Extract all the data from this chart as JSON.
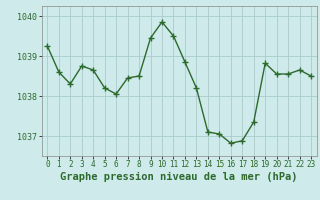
{
  "x": [
    0,
    1,
    2,
    3,
    4,
    5,
    6,
    7,
    8,
    9,
    10,
    11,
    12,
    13,
    14,
    15,
    16,
    17,
    18,
    19,
    20,
    21,
    22,
    23
  ],
  "y": [
    1039.25,
    1038.6,
    1038.3,
    1038.75,
    1038.65,
    1038.2,
    1038.05,
    1038.45,
    1038.5,
    1039.45,
    1039.85,
    1039.5,
    1038.85,
    1038.2,
    1037.1,
    1037.05,
    1036.82,
    1036.88,
    1037.35,
    1038.82,
    1038.55,
    1038.55,
    1038.65,
    1038.5
  ],
  "line_color": "#2d6a2d",
  "marker": "+",
  "marker_size": 4,
  "marker_color": "#2d6a2d",
  "bg_color": "#ceeaea",
  "grid_color": "#aacccc",
  "xlabel": "Graphe pression niveau de la mer (hPa)",
  "xlabel_fontsize": 7.5,
  "xlabel_color": "#2d6a2d",
  "ylabel_ticks": [
    1037,
    1038,
    1039,
    1040
  ],
  "ylim": [
    1036.5,
    1040.25
  ],
  "xlim": [
    -0.5,
    23.5
  ],
  "xticks": [
    0,
    1,
    2,
    3,
    4,
    5,
    6,
    7,
    8,
    9,
    10,
    11,
    12,
    13,
    14,
    15,
    16,
    17,
    18,
    19,
    20,
    21,
    22,
    23
  ],
  "tick_fontsize": 5.5,
  "ytick_fontsize": 6.0,
  "line_width": 1.0
}
